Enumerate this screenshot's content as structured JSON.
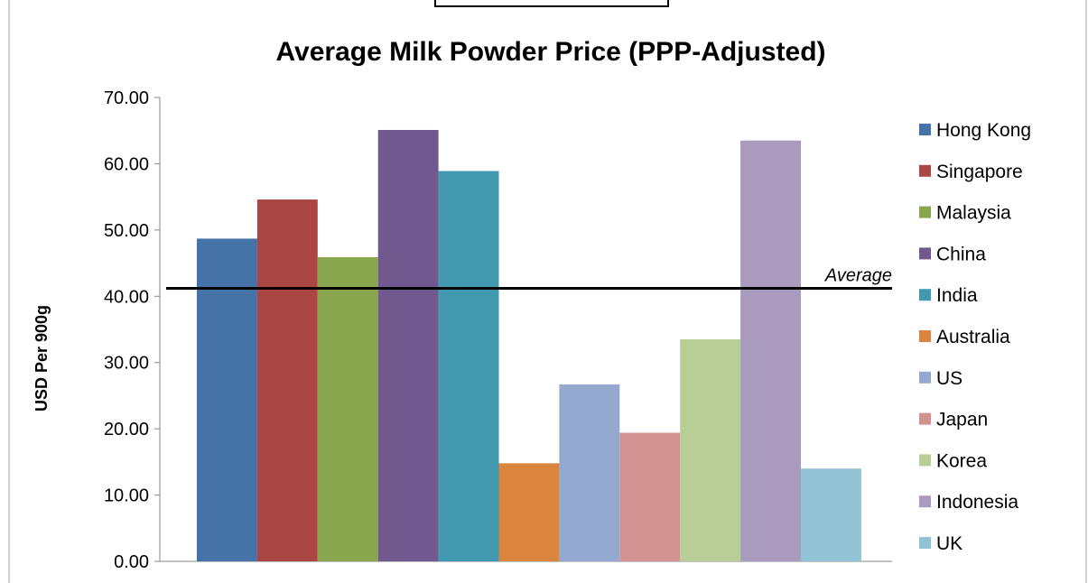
{
  "chart_data": {
    "type": "bar",
    "title": "Average Milk Powder Price (PPP-Adjusted)",
    "xlabel": "",
    "ylabel": "USD Per 900g",
    "ylim": [
      0,
      70
    ],
    "yticks": [
      "0.00",
      "10.00",
      "20.00",
      "30.00",
      "40.00",
      "50.00",
      "60.00",
      "70.00"
    ],
    "grid": false,
    "legend_position": "right",
    "series": [
      {
        "name": "Hong Kong",
        "value": 48.7,
        "color": "#4572A7"
      },
      {
        "name": "Singapore",
        "value": 54.6,
        "color": "#AA4643"
      },
      {
        "name": "Malaysia",
        "value": 45.9,
        "color": "#89A54E"
      },
      {
        "name": "China",
        "value": 65.1,
        "color": "#71588F"
      },
      {
        "name": "India",
        "value": 58.9,
        "color": "#4198AF"
      },
      {
        "name": "Australia",
        "value": 14.8,
        "color": "#DB843D"
      },
      {
        "name": "US",
        "value": 26.7,
        "color": "#93A9CF"
      },
      {
        "name": "Japan",
        "value": 19.4,
        "color": "#D19392"
      },
      {
        "name": "Korea",
        "value": 33.5,
        "color": "#B9CD96"
      },
      {
        "name": "Indonesia",
        "value": 63.5,
        "color": "#A99BBD"
      },
      {
        "name": "UK",
        "value": 14.0,
        "color": "#92C3D5"
      }
    ],
    "average_line": {
      "label": "Average",
      "value": 41.2
    }
  }
}
